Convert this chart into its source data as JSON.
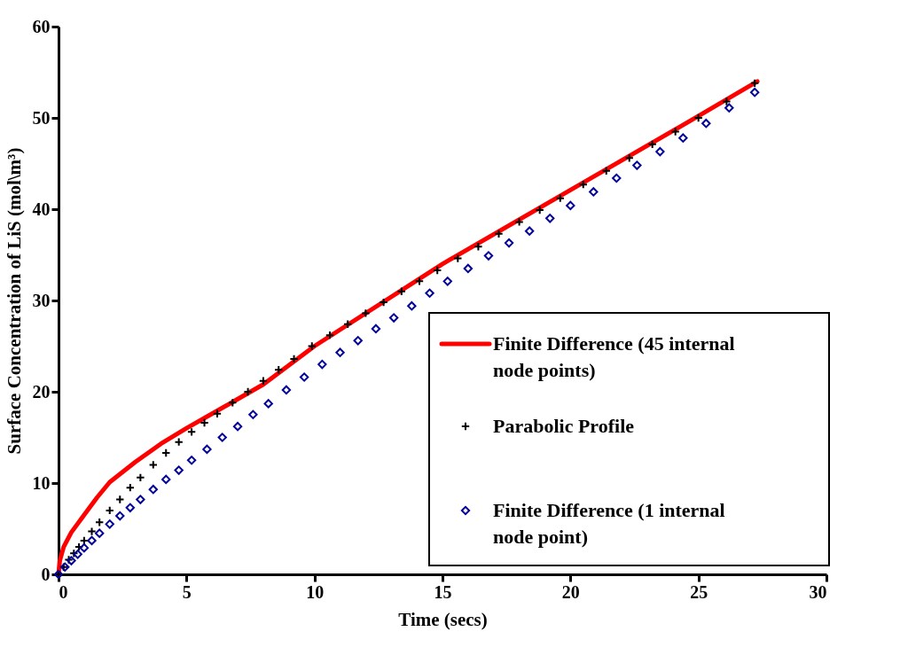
{
  "chart_data": {
    "type": "line",
    "xlabel": "Time (secs)",
    "ylabel": "Surface Concentration of LiS (mol\\m³)",
    "xlim": [
      0,
      30
    ],
    "xticks": [
      0,
      5,
      10,
      15,
      20,
      25,
      30
    ],
    "ylim": [
      0,
      60
    ],
    "yticks": [
      0,
      10,
      20,
      30,
      40,
      50,
      60
    ],
    "grid": false,
    "legend": "bottom right",
    "series": [
      {
        "name": "Finite Difference (45 internal node points)",
        "color": "#ff0000",
        "line_style": "solid",
        "marker": "none",
        "x": [
          0,
          0.05,
          0.2,
          0.5,
          1,
          1.5,
          2,
          3,
          4,
          5,
          6,
          7,
          8,
          10,
          15,
          20,
          25,
          27.3
        ],
        "values": [
          0,
          1.5,
          3.0,
          4.6,
          6.5,
          8.4,
          10.1,
          12.3,
          14.3,
          16.0,
          17.6,
          19.2,
          20.8,
          25.0,
          34.0,
          42.1,
          50.2,
          54.0
        ]
      },
      {
        "name": "Parabolic Profile",
        "type": "scatter",
        "color": "#000000",
        "marker": "cross",
        "x": [
          0,
          0.2,
          0.4,
          0.6,
          0.8,
          1.0,
          1.3,
          1.6,
          2.0,
          2.4,
          2.8,
          3.2,
          3.7,
          4.2,
          4.7,
          5.2,
          5.7,
          6.2,
          6.8,
          7.4,
          8.0,
          8.6,
          9.2,
          9.9,
          10.6,
          11.3,
          12.0,
          12.7,
          13.4,
          14.1,
          14.8,
          15.6,
          16.4,
          17.2,
          18.0,
          18.8,
          19.6,
          20.5,
          21.4,
          22.3,
          23.2,
          24.1,
          25.0,
          26.1,
          27.2
        ],
        "values": [
          0,
          0.8,
          1.6,
          2.3,
          3.0,
          3.7,
          4.7,
          5.7,
          7.0,
          8.2,
          9.5,
          10.6,
          12.0,
          13.3,
          14.5,
          15.6,
          16.6,
          17.6,
          18.8,
          20.0,
          21.2,
          22.4,
          23.6,
          25.0,
          26.2,
          27.4,
          28.6,
          29.8,
          31.0,
          32.1,
          33.3,
          34.6,
          35.9,
          37.3,
          38.6,
          39.9,
          41.2,
          42.7,
          44.2,
          45.6,
          47.1,
          48.5,
          50.0,
          51.8,
          53.8
        ]
      },
      {
        "name": "Finite Difference (1 internal node point)",
        "type": "scatter",
        "color": "#00009a",
        "marker": "diamond",
        "x": [
          0,
          0.25,
          0.5,
          0.75,
          1.0,
          1.3,
          1.6,
          2.0,
          2.4,
          2.8,
          3.2,
          3.7,
          4.2,
          4.7,
          5.2,
          5.8,
          6.4,
          7.0,
          7.6,
          8.2,
          8.9,
          9.6,
          10.3,
          11.0,
          11.7,
          12.4,
          13.1,
          13.8,
          14.5,
          15.2,
          16.0,
          16.8,
          17.6,
          18.4,
          19.2,
          20.0,
          20.9,
          21.8,
          22.6,
          23.5,
          24.4,
          25.3,
          26.2,
          27.2
        ],
        "values": [
          0,
          0.8,
          1.5,
          2.2,
          2.9,
          3.7,
          4.5,
          5.5,
          6.4,
          7.3,
          8.2,
          9.3,
          10.4,
          11.4,
          12.5,
          13.7,
          15.0,
          16.2,
          17.5,
          18.7,
          20.2,
          21.6,
          23.0,
          24.3,
          25.6,
          26.9,
          28.1,
          29.4,
          30.8,
          32.1,
          33.5,
          34.9,
          36.3,
          37.6,
          39.0,
          40.4,
          41.9,
          43.4,
          44.8,
          46.3,
          47.8,
          49.4,
          51.1,
          52.8
        ]
      }
    ]
  }
}
